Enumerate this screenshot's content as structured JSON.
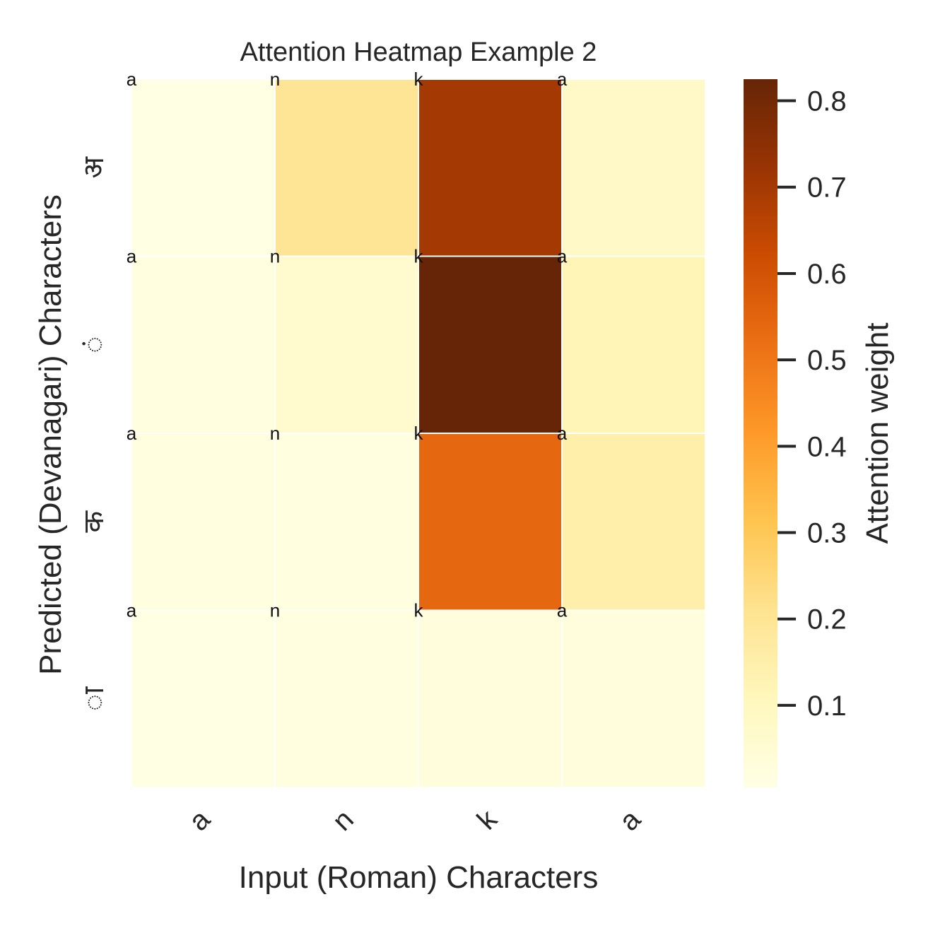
{
  "chart_data": {
    "type": "heatmap",
    "title": "Attention  Heatmap  Example  2",
    "xlabel": "Input (Roman) Characters",
    "ylabel": "Predicted  (Devanagari)  Characters",
    "x_tick_labels": [
      "a",
      "n",
      "k",
      "a"
    ],
    "y_tick_labels": [
      "अ",
      "ं",
      "क",
      "ा"
    ],
    "cell_annotations": [
      [
        "a",
        "n",
        "k",
        "a"
      ],
      [
        "a",
        "n",
        "k",
        "a"
      ],
      [
        "a",
        "n",
        "k",
        "a"
      ],
      [
        "a",
        "n",
        "k",
        "a"
      ]
    ],
    "values": [
      [
        0.01,
        0.2,
        0.7,
        0.08
      ],
      [
        0.02,
        0.06,
        0.83,
        0.12
      ],
      [
        0.02,
        0.02,
        0.54,
        0.15
      ],
      [
        0.01,
        0.02,
        0.03,
        0.03
      ]
    ],
    "colorbar": {
      "label": "Attention weight",
      "ticks": [
        0.1,
        0.2,
        0.3,
        0.4,
        0.5,
        0.6,
        0.7,
        0.8
      ],
      "range": [
        0.005,
        0.825
      ],
      "colormap": [
        "#ffffe5",
        "#fff7bc",
        "#fee391",
        "#fec44f",
        "#fe9929",
        "#ec7014",
        "#cc4c02",
        "#993404",
        "#662506"
      ]
    },
    "grid": true
  }
}
